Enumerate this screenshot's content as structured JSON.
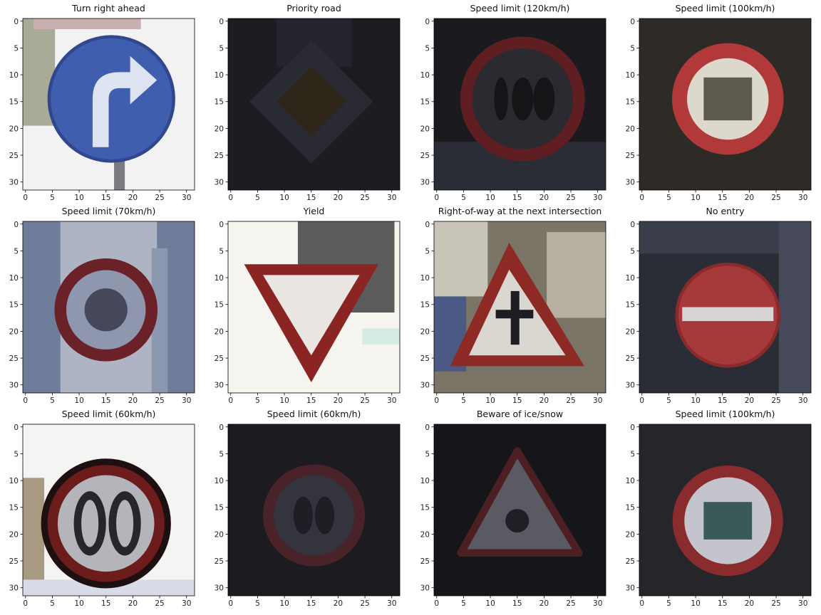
{
  "panels": [
    {
      "title": "Turn right ahead"
    },
    {
      "title": "Priority road"
    },
    {
      "title": "Speed limit (120km/h)"
    },
    {
      "title": "Speed limit (100km/h)"
    },
    {
      "title": "Speed limit (70km/h)"
    },
    {
      "title": "Yield"
    },
    {
      "title": "Right-of-way at the next intersection"
    },
    {
      "title": "No entry"
    },
    {
      "title": "Speed limit (60km/h)"
    },
    {
      "title": "Speed limit (60km/h)"
    },
    {
      "title": "Beware of ice/snow"
    },
    {
      "title": "Speed limit (100km/h)"
    }
  ],
  "axes": {
    "xticks": [
      0,
      5,
      10,
      15,
      20,
      25,
      30
    ],
    "yticks": [
      0,
      5,
      10,
      15,
      20,
      25,
      30
    ]
  }
}
